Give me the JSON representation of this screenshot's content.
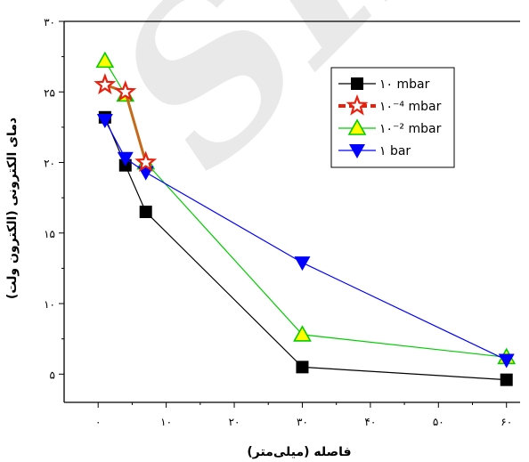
{
  "chart_data": {
    "type": "line",
    "title": "",
    "xlabel": "فاصله (میلی‌متر)",
    "ylabel": "دمای الکترونی (الکترون ولت)",
    "xlim": [
      -5,
      62
    ],
    "ylim": [
      3,
      30
    ],
    "x_ticks": [
      0,
      10,
      20,
      30,
      40,
      50,
      60
    ],
    "x_tick_labels": [
      "۰",
      "۱۰",
      "۲۰",
      "۳۰",
      "۴۰",
      "۵۰",
      "۶۰"
    ],
    "y_ticks": [
      5,
      10,
      15,
      20,
      25,
      30
    ],
    "y_tick_labels": [
      "۵",
      "۱۰",
      "۱۵",
      "۲۰",
      "۲۵",
      "۳۰"
    ],
    "legend_position": "top-right",
    "grid": false,
    "series": [
      {
        "name": "۱۰ mbar",
        "marker": "square",
        "color": "#000000",
        "x": [
          1,
          4,
          7,
          30,
          60
        ],
        "y": [
          23.2,
          19.8,
          16.5,
          5.5,
          4.6
        ]
      },
      {
        "name": "۱۰⁻⁴ mbar",
        "marker": "star",
        "color": "#e8210f",
        "x": [
          1,
          4,
          7
        ],
        "y": [
          25.5,
          25,
          20
        ]
      },
      {
        "name": "۱۰⁻² mbar",
        "marker": "triangle-up",
        "color": "#00cc00",
        "x": [
          1,
          4,
          7,
          30,
          60
        ],
        "y": [
          27.2,
          24.8,
          20,
          7.8,
          6.2
        ]
      },
      {
        "name": "۱ bar",
        "marker": "triangle-down",
        "color": "#0000ff",
        "x": [
          1,
          4,
          7,
          30,
          60
        ],
        "y": [
          23,
          20.3,
          19.3,
          12.9,
          6
        ]
      }
    ],
    "watermark_text": "SID"
  }
}
